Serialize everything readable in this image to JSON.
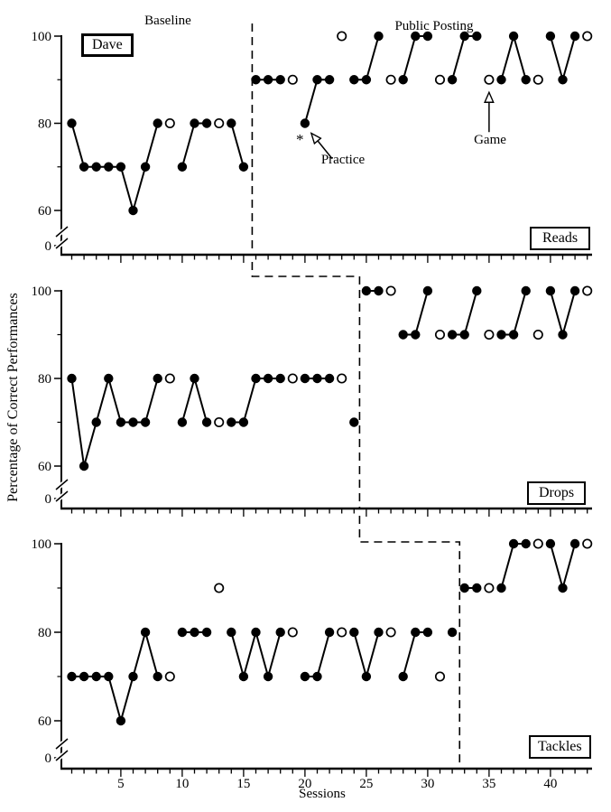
{
  "figure": {
    "subject_label": "Dave",
    "phase_labels": {
      "baseline": "Baseline",
      "treatment": "Public Posting"
    },
    "y_axis_title": "Percentage of Correct Performances",
    "x_axis_title": "Sessions",
    "annotations": {
      "practice": "Practice",
      "game": "Game",
      "asterisk": "*"
    }
  },
  "chart_data": {
    "type": "line",
    "title": "",
    "xlabel": "Sessions",
    "ylabel": "Percentage of Correct Performances",
    "x_range": [
      1,
      43
    ],
    "x_ticks_labeled": [
      5,
      10,
      15,
      20,
      25,
      30,
      35,
      40
    ],
    "y_ticks_major": [
      100,
      80,
      60
    ],
    "y_ticks_minor": [
      90,
      70
    ],
    "y_zero_label": "0",
    "y_axis_break": true,
    "marker_legend": {
      "filled_circle": "Practice session",
      "open_circle": "Game"
    },
    "panels": [
      {
        "label": "Reads",
        "phase_change_after_session": 15.7,
        "points": [
          [
            1,
            80,
            "f"
          ],
          [
            2,
            70,
            "f"
          ],
          [
            3,
            70,
            "f"
          ],
          [
            4,
            70,
            "f"
          ],
          [
            5,
            70,
            "f"
          ],
          [
            6,
            60,
            "f"
          ],
          [
            7,
            70,
            "f"
          ],
          [
            8,
            80,
            "f"
          ],
          [
            9,
            80,
            "o"
          ],
          [
            10,
            70,
            "f"
          ],
          [
            11,
            80,
            "f"
          ],
          [
            12,
            80,
            "f"
          ],
          [
            13,
            80,
            "o"
          ],
          [
            14,
            80,
            "f"
          ],
          [
            15,
            70,
            "f"
          ],
          [
            16,
            90,
            "f"
          ],
          [
            17,
            90,
            "f"
          ],
          [
            18,
            90,
            "f"
          ],
          [
            19,
            90,
            "o"
          ],
          [
            20,
            80,
            "f"
          ],
          [
            21,
            90,
            "f"
          ],
          [
            22,
            90,
            "f"
          ],
          [
            23,
            100,
            "o"
          ],
          [
            24,
            90,
            "f"
          ],
          [
            25,
            90,
            "f"
          ],
          [
            26,
            100,
            "f"
          ],
          [
            27,
            90,
            "o"
          ],
          [
            28,
            90,
            "f"
          ],
          [
            29,
            100,
            "f"
          ],
          [
            30,
            100,
            "f"
          ],
          [
            31,
            90,
            "o"
          ],
          [
            32,
            90,
            "f"
          ],
          [
            33,
            100,
            "f"
          ],
          [
            34,
            100,
            "f"
          ],
          [
            35,
            90,
            "o"
          ],
          [
            36,
            90,
            "f"
          ],
          [
            37,
            100,
            "f"
          ],
          [
            38,
            90,
            "f"
          ],
          [
            39,
            90,
            "o"
          ],
          [
            40,
            100,
            "f"
          ],
          [
            41,
            90,
            "f"
          ],
          [
            42,
            100,
            "f"
          ],
          [
            43,
            100,
            "o"
          ]
        ],
        "chains": [
          [
            1,
            2,
            3,
            4,
            5,
            6,
            7,
            8
          ],
          [
            10,
            11,
            12
          ],
          [
            14,
            15
          ],
          [
            16,
            17,
            18
          ],
          [
            20,
            21,
            22
          ],
          [
            24,
            25,
            26
          ],
          [
            28,
            29,
            30
          ],
          [
            32,
            33,
            34
          ],
          [
            36,
            37,
            38
          ],
          [
            40,
            41,
            42
          ]
        ],
        "annotations": {
          "practice_session": 20,
          "asterisk_session": 20,
          "game_session": 35
        }
      },
      {
        "label": "Drops",
        "phase_change_after_session": 24.45,
        "points": [
          [
            1,
            80,
            "f"
          ],
          [
            2,
            60,
            "f"
          ],
          [
            3,
            70,
            "f"
          ],
          [
            4,
            80,
            "f"
          ],
          [
            5,
            70,
            "f"
          ],
          [
            6,
            70,
            "f"
          ],
          [
            7,
            70,
            "f"
          ],
          [
            8,
            80,
            "f"
          ],
          [
            9,
            80,
            "o"
          ],
          [
            10,
            70,
            "f"
          ],
          [
            11,
            80,
            "f"
          ],
          [
            12,
            70,
            "f"
          ],
          [
            13,
            70,
            "o"
          ],
          [
            14,
            70,
            "f"
          ],
          [
            15,
            70,
            "f"
          ],
          [
            16,
            80,
            "f"
          ],
          [
            17,
            80,
            "f"
          ],
          [
            18,
            80,
            "f"
          ],
          [
            19,
            80,
            "o"
          ],
          [
            20,
            80,
            "f"
          ],
          [
            21,
            80,
            "f"
          ],
          [
            22,
            80,
            "f"
          ],
          [
            23,
            80,
            "o"
          ],
          [
            24,
            70,
            "f"
          ],
          [
            25,
            100,
            "f"
          ],
          [
            26,
            100,
            "f"
          ],
          [
            27,
            100,
            "o"
          ],
          [
            28,
            90,
            "f"
          ],
          [
            29,
            90,
            "f"
          ],
          [
            30,
            100,
            "f"
          ],
          [
            31,
            90,
            "o"
          ],
          [
            32,
            90,
            "f"
          ],
          [
            33,
            90,
            "f"
          ],
          [
            34,
            100,
            "f"
          ],
          [
            35,
            90,
            "o"
          ],
          [
            36,
            90,
            "f"
          ],
          [
            37,
            90,
            "f"
          ],
          [
            38,
            100,
            "f"
          ],
          [
            39,
            90,
            "o"
          ],
          [
            40,
            100,
            "f"
          ],
          [
            41,
            90,
            "f"
          ],
          [
            42,
            100,
            "f"
          ],
          [
            43,
            100,
            "o"
          ]
        ],
        "chains": [
          [
            1,
            2,
            3,
            4,
            5,
            6,
            7,
            8
          ],
          [
            10,
            11,
            12
          ],
          [
            14,
            15,
            16,
            17,
            18
          ],
          [
            20,
            21,
            22
          ],
          [
            25,
            26
          ],
          [
            28,
            29,
            30
          ],
          [
            32,
            33,
            34
          ],
          [
            36,
            37,
            38
          ],
          [
            40,
            41,
            42
          ]
        ]
      },
      {
        "label": "Tackles",
        "phase_change_after_session": 32.6,
        "points": [
          [
            1,
            70,
            "f"
          ],
          [
            2,
            70,
            "f"
          ],
          [
            3,
            70,
            "f"
          ],
          [
            4,
            70,
            "f"
          ],
          [
            5,
            60,
            "f"
          ],
          [
            6,
            70,
            "f"
          ],
          [
            7,
            80,
            "f"
          ],
          [
            8,
            70,
            "f"
          ],
          [
            9,
            70,
            "o"
          ],
          [
            10,
            80,
            "f"
          ],
          [
            11,
            80,
            "f"
          ],
          [
            12,
            80,
            "f"
          ],
          [
            13,
            90,
            "o"
          ],
          [
            14,
            80,
            "f"
          ],
          [
            15,
            70,
            "f"
          ],
          [
            16,
            80,
            "f"
          ],
          [
            17,
            70,
            "f"
          ],
          [
            18,
            80,
            "f"
          ],
          [
            19,
            80,
            "o"
          ],
          [
            20,
            70,
            "f"
          ],
          [
            21,
            70,
            "f"
          ],
          [
            22,
            80,
            "f"
          ],
          [
            23,
            80,
            "o"
          ],
          [
            24,
            80,
            "f"
          ],
          [
            25,
            70,
            "f"
          ],
          [
            26,
            80,
            "f"
          ],
          [
            27,
            80,
            "o"
          ],
          [
            28,
            70,
            "f"
          ],
          [
            29,
            80,
            "f"
          ],
          [
            30,
            80,
            "f"
          ],
          [
            31,
            70,
            "o"
          ],
          [
            32,
            80,
            "f"
          ],
          [
            33,
            90,
            "f"
          ],
          [
            34,
            90,
            "f"
          ],
          [
            35,
            90,
            "o"
          ],
          [
            36,
            90,
            "f"
          ],
          [
            37,
            100,
            "f"
          ],
          [
            38,
            100,
            "f"
          ],
          [
            39,
            100,
            "o"
          ],
          [
            40,
            100,
            "f"
          ],
          [
            41,
            90,
            "f"
          ],
          [
            42,
            100,
            "f"
          ],
          [
            43,
            100,
            "o"
          ]
        ],
        "chains": [
          [
            1,
            2,
            3,
            4,
            5,
            6,
            7,
            8
          ],
          [
            10,
            11,
            12
          ],
          [
            14,
            15,
            16,
            17,
            18
          ],
          [
            20,
            21,
            22
          ],
          [
            24,
            25,
            26
          ],
          [
            28,
            29,
            30
          ],
          [
            33,
            34
          ],
          [
            36,
            37,
            38
          ],
          [
            40,
            41,
            42
          ]
        ]
      }
    ]
  }
}
